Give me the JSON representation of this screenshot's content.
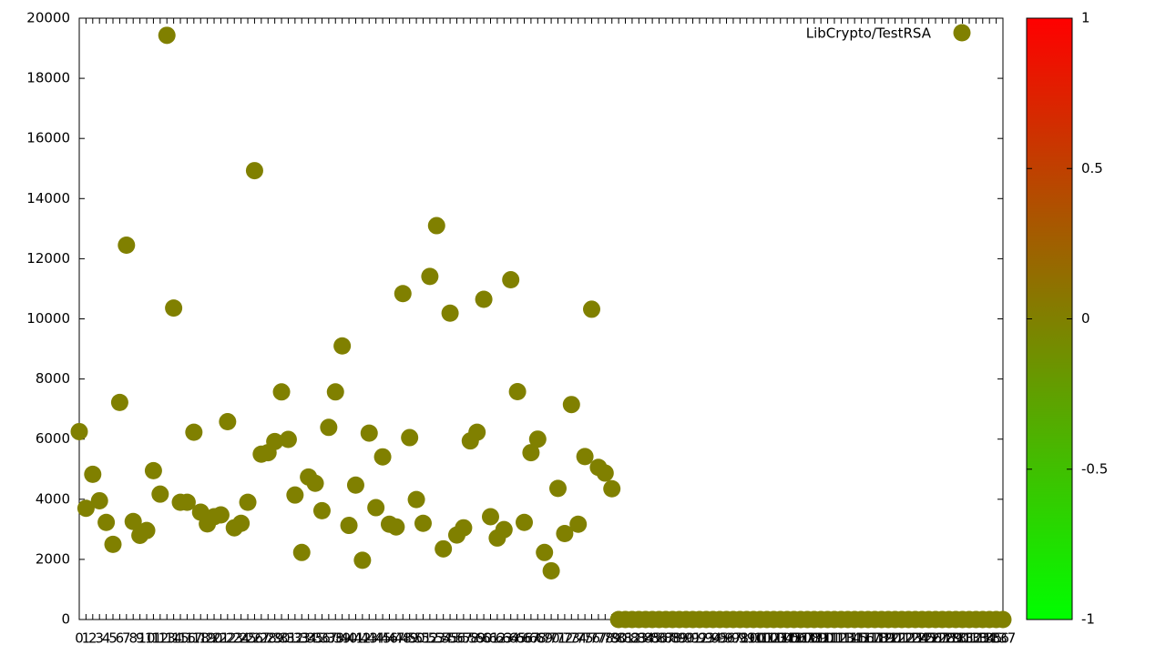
{
  "chart_data": {
    "type": "scatter",
    "series": [
      {
        "name": "LibCrypto/TestRSA",
        "color": "#808000",
        "x": [
          0,
          1,
          2,
          3,
          4,
          5,
          6,
          7,
          8,
          9,
          10,
          11,
          12,
          13,
          14,
          15,
          16,
          17,
          18,
          19,
          20,
          21,
          22,
          23,
          24,
          25,
          26,
          27,
          28,
          29,
          30,
          31,
          32,
          33,
          34,
          35,
          36,
          37,
          38,
          39,
          40,
          41,
          42,
          43,
          44,
          45,
          46,
          47,
          48,
          49,
          50,
          51,
          52,
          53,
          54,
          55,
          56,
          57,
          58,
          59,
          60,
          61,
          62,
          63,
          64,
          65,
          66,
          67,
          68,
          69,
          70,
          71,
          72,
          73,
          74,
          75,
          76,
          77,
          78,
          79,
          80,
          81,
          82,
          83,
          84,
          85,
          86,
          87,
          88,
          89,
          90,
          91,
          92,
          93,
          94,
          95,
          96,
          97,
          98,
          99,
          100,
          101,
          102,
          103,
          104,
          105,
          106,
          107,
          108,
          109,
          110,
          111,
          112,
          113,
          114,
          115,
          116,
          117,
          118,
          119,
          120,
          121,
          122,
          123,
          124,
          125,
          126,
          127,
          128,
          129,
          130,
          131,
          132,
          133,
          134,
          135,
          136,
          137
        ],
        "values": [
          6250,
          3700,
          4830,
          3950,
          3230,
          2500,
          7220,
          12450,
          3260,
          2800,
          2960,
          4950,
          4170,
          19430,
          10360,
          3900,
          3900,
          6230,
          3570,
          3180,
          3420,
          3480,
          6580,
          3050,
          3200,
          3900,
          14930,
          5500,
          5550,
          5920,
          7570,
          5990,
          4140,
          2230,
          4740,
          4530,
          3620,
          6390,
          7570,
          9100,
          3130,
          4470,
          1970,
          6200,
          3720,
          5410,
          3170,
          3080,
          10840,
          6050,
          3990,
          3200,
          11410,
          13100,
          2350,
          10190,
          2810,
          3050,
          5940,
          6230,
          10650,
          3420,
          2710,
          2990,
          11300,
          7580,
          3230,
          5550,
          6000,
          2230,
          1620,
          4360,
          2860,
          7150,
          3170,
          5420,
          10320,
          5060,
          4870,
          4350,
          0,
          0,
          0,
          0,
          0,
          0,
          0,
          0,
          0,
          0,
          0,
          0,
          0,
          0,
          0,
          0,
          0,
          0,
          0,
          0,
          0,
          0,
          0,
          0,
          0,
          0,
          0,
          0,
          0,
          0,
          0,
          0,
          0,
          0,
          0,
          0,
          0,
          0,
          0,
          0,
          0,
          0,
          0,
          0,
          0,
          0,
          0,
          0,
          0,
          0,
          0,
          0,
          0,
          0,
          0,
          0,
          0,
          0
        ]
      }
    ],
    "xlim": [
      0,
      137
    ],
    "xticks": [
      0,
      1,
      2,
      3,
      4,
      5,
      6,
      7,
      8,
      9,
      10,
      11,
      12,
      13,
      14,
      15,
      16,
      17,
      18,
      19,
      20,
      21,
      22,
      23,
      24,
      25,
      26,
      27,
      28,
      29,
      30,
      31,
      32,
      33,
      34,
      35,
      36,
      37,
      38,
      39,
      40,
      41,
      42,
      43,
      44,
      45,
      46,
      47,
      48,
      49,
      50,
      51,
      52,
      53,
      54,
      55,
      56,
      57,
      58,
      59,
      60,
      61,
      62,
      63,
      64,
      65,
      66,
      67,
      68,
      69,
      70,
      71,
      72,
      73,
      74,
      75,
      76,
      77,
      78,
      79,
      80,
      81,
      82,
      83,
      84,
      85,
      86,
      87,
      88,
      89,
      90,
      91,
      92,
      93,
      94,
      95,
      96,
      97,
      98,
      99,
      100,
      101,
      102,
      103,
      104,
      105,
      106,
      107,
      108,
      109,
      110,
      111,
      112,
      113,
      114,
      115,
      116,
      117,
      118,
      119,
      120,
      121,
      122,
      123,
      124,
      125,
      126,
      127,
      128,
      129,
      130,
      131,
      132,
      133,
      134,
      135,
      136,
      137
    ],
    "ylim": [
      0,
      20000
    ],
    "yticks": [
      0,
      2000,
      4000,
      6000,
      8000,
      10000,
      12000,
      14000,
      16000,
      18000,
      20000
    ],
    "legend": "top-right",
    "colorbar": {
      "lim": [
        -1,
        1
      ],
      "ticks": [
        -1,
        -0.5,
        0,
        0.5,
        1
      ],
      "colors": [
        "#00ff00",
        "#808000",
        "#ff0000"
      ]
    }
  }
}
